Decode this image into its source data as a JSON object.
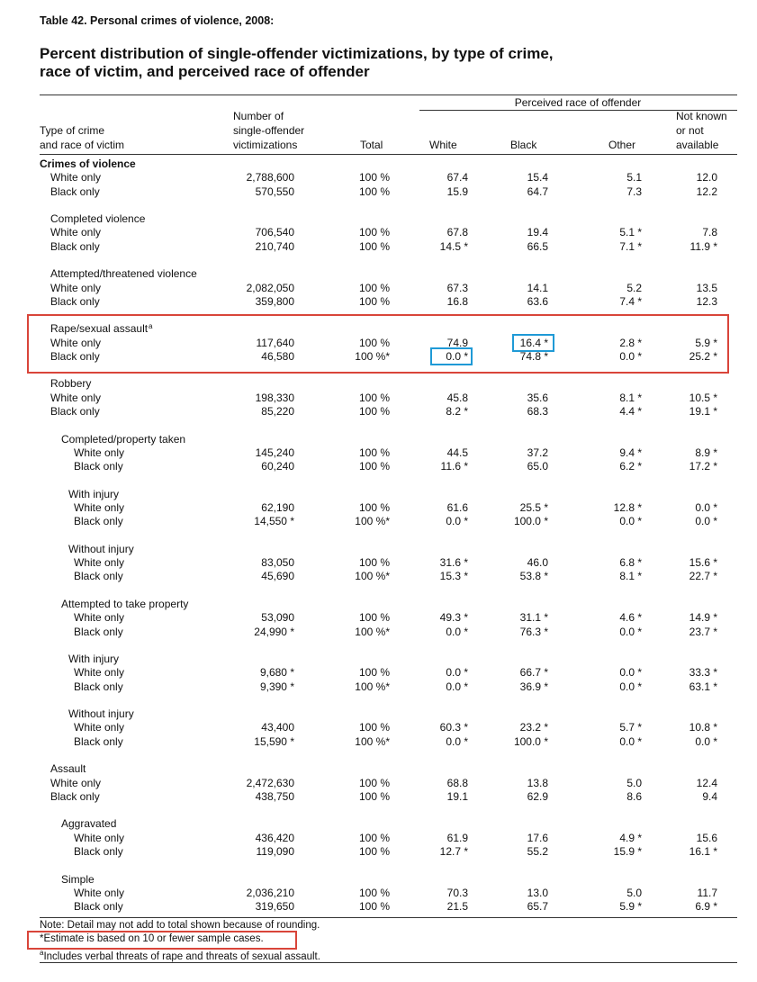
{
  "table_label": "Table 42. Personal crimes of violence, 2008:",
  "title_line1": "Percent distribution of single-offender victimizations, by type of crime,",
  "title_line2": "race of victim, and perceived race of offender",
  "header": {
    "group": "Perceived race of offender",
    "type_l1": "Type of crime",
    "type_l2": "and race of victim",
    "num_l1": "Number of",
    "num_l2": "single-offender",
    "num_l3": "victimizations",
    "total": "Total",
    "white": "White",
    "black": "Black",
    "other": "Other",
    "nk_l1": "Not known",
    "nk_l2": "or not",
    "nk_l3": "available"
  },
  "rows": [
    {
      "label": "Crimes of violence",
      "bold": true,
      "indent": 0
    },
    {
      "label": "White only",
      "indent": 1,
      "n": "2,788,600",
      "total": "100 %",
      "white": "67.4",
      "black": "15.4",
      "other": "5.1",
      "nk": "12.0"
    },
    {
      "label": "Black only",
      "indent": 1,
      "n": "570,550",
      "total": "100 %",
      "white": "15.9",
      "black": "64.7",
      "other": "7.3",
      "nk": "12.2"
    },
    {
      "blank": true
    },
    {
      "label": "Completed violence",
      "indent": 1
    },
    {
      "label": "White only",
      "indent": 1,
      "n": "706,540",
      "total": "100 %",
      "white": "67.8",
      "black": "19.4",
      "other": "5.1 *",
      "nk": "7.8"
    },
    {
      "label": "Black only",
      "indent": 1,
      "n": "210,740",
      "total": "100 %",
      "white": "14.5 *",
      "black": "66.5",
      "other": "7.1 *",
      "nk": "11.9 *"
    },
    {
      "blank": true
    },
    {
      "label": "Attempted/threatened violence",
      "indent": 1
    },
    {
      "label": "White only",
      "indent": 1,
      "n": "2,082,050",
      "total": "100 %",
      "white": "67.3",
      "black": "14.1",
      "other": "5.2",
      "nk": "13.5"
    },
    {
      "label": "Black only",
      "indent": 1,
      "n": "359,800",
      "total": "100 %",
      "white": "16.8",
      "black": "63.6",
      "other": "7.4 *",
      "nk": "12.3"
    },
    {
      "blank": true
    },
    {
      "label": "Rape/sexual assault",
      "sup": "a",
      "indent": 1
    },
    {
      "label": "White only",
      "indent": 1,
      "n": "117,640",
      "total": "100 %",
      "white": "74.9",
      "black": "16.4 *",
      "other": "2.8 *",
      "nk": "5.9 *"
    },
    {
      "label": "Black only",
      "indent": 1,
      "n": "46,580",
      "total": "100 %*",
      "white": "0.0 *",
      "black": "74.8 *",
      "other": "0.0 *",
      "nk": "25.2 *"
    },
    {
      "blank": true
    },
    {
      "label": "Robbery",
      "indent": 1
    },
    {
      "label": "White only",
      "indent": 1,
      "n": "198,330",
      "total": "100 %",
      "white": "45.8",
      "black": "35.6",
      "other": "8.1 *",
      "nk": "10.5 *"
    },
    {
      "label": "Black only",
      "indent": 1,
      "n": "85,220",
      "total": "100 %",
      "white": "8.2 *",
      "black": "68.3",
      "other": "4.4 *",
      "nk": "19.1 *"
    },
    {
      "blank": true
    },
    {
      "label": "Completed/property taken",
      "indent": 2
    },
    {
      "label": "White only",
      "indent": 3,
      "n": "145,240",
      "total": "100 %",
      "white": "44.5",
      "black": "37.2",
      "other": "9.4 *",
      "nk": "8.9 *"
    },
    {
      "label": "Black only",
      "indent": 3,
      "n": "60,240",
      "total": "100 %",
      "white": "11.6 *",
      "black": "65.0",
      "other": "6.2 *",
      "nk": "17.2 *"
    },
    {
      "blank": true
    },
    {
      "label": "With injury",
      "indent": 2.5
    },
    {
      "label": "White only",
      "indent": 3,
      "n": "62,190",
      "total": "100 %",
      "white": "61.6",
      "black": "25.5 *",
      "other": "12.8 *",
      "nk": "0.0 *"
    },
    {
      "label": "Black only",
      "indent": 3,
      "n": "14,550 *",
      "total": "100 %*",
      "white": "0.0 *",
      "black": "100.0 *",
      "other": "0.0 *",
      "nk": "0.0 *"
    },
    {
      "blank": true
    },
    {
      "label": "Without injury",
      "indent": 2.5
    },
    {
      "label": "White only",
      "indent": 3,
      "n": "83,050",
      "total": "100 %",
      "white": "31.6 *",
      "black": "46.0",
      "other": "6.8 *",
      "nk": "15.6 *"
    },
    {
      "label": "Black only",
      "indent": 3,
      "n": "45,690",
      "total": "100 %*",
      "white": "15.3 *",
      "black": "53.8 *",
      "other": "8.1 *",
      "nk": "22.7 *"
    },
    {
      "blank": true
    },
    {
      "label": "Attempted to take property",
      "indent": 2
    },
    {
      "label": "White only",
      "indent": 3,
      "n": "53,090",
      "total": "100 %",
      "white": "49.3 *",
      "black": "31.1 *",
      "other": "4.6 *",
      "nk": "14.9 *"
    },
    {
      "label": "Black only",
      "indent": 3,
      "n": "24,990 *",
      "total": "100 %*",
      "white": "0.0 *",
      "black": "76.3 *",
      "other": "0.0 *",
      "nk": "23.7 *"
    },
    {
      "blank": true
    },
    {
      "label": "With injury",
      "indent": 2.5
    },
    {
      "label": "White only",
      "indent": 3,
      "n": "9,680 *",
      "total": "100 %",
      "white": "0.0 *",
      "black": "66.7 *",
      "other": "0.0 *",
      "nk": "33.3 *"
    },
    {
      "label": "Black only",
      "indent": 3,
      "n": "9,390 *",
      "total": "100 %*",
      "white": "0.0 *",
      "black": "36.9 *",
      "other": "0.0 *",
      "nk": "63.1 *"
    },
    {
      "blank": true
    },
    {
      "label": "Without injury",
      "indent": 2.5
    },
    {
      "label": "White only",
      "indent": 3,
      "n": "43,400",
      "total": "100 %",
      "white": "60.3 *",
      "black": "23.2 *",
      "other": "5.7 *",
      "nk": "10.8 *"
    },
    {
      "label": "Black only",
      "indent": 3,
      "n": "15,590 *",
      "total": "100 %*",
      "white": "0.0 *",
      "black": "100.0 *",
      "other": "0.0 *",
      "nk": "0.0 *"
    },
    {
      "blank": true
    },
    {
      "label": "Assault",
      "indent": 1
    },
    {
      "label": "White only",
      "indent": 1,
      "n": "2,472,630",
      "total": "100 %",
      "white": "68.8",
      "black": "13.8",
      "other": "5.0",
      "nk": "12.4"
    },
    {
      "label": "Black only",
      "indent": 1,
      "n": "438,750",
      "total": "100 %",
      "white": "19.1",
      "black": "62.9",
      "other": "8.6",
      "nk": "9.4"
    },
    {
      "blank": true
    },
    {
      "label": "Aggravated",
      "indent": 2
    },
    {
      "label": "White only",
      "indent": 3,
      "n": "436,420",
      "total": "100 %",
      "white": "61.9",
      "black": "17.6",
      "other": "4.9 *",
      "nk": "15.6"
    },
    {
      "label": "Black only",
      "indent": 3,
      "n": "119,090",
      "total": "100 %",
      "white": "12.7 *",
      "black": "55.2",
      "other": "15.9 *",
      "nk": "16.1 *"
    },
    {
      "blank": true
    },
    {
      "label": "Simple",
      "indent": 2
    },
    {
      "label": "White only",
      "indent": 3,
      "n": "2,036,210",
      "total": "100 %",
      "white": "70.3",
      "black": "13.0",
      "other": "5.0",
      "nk": "11.7"
    },
    {
      "label": "Black only",
      "indent": 3,
      "n": "319,650",
      "total": "100 %",
      "white": "21.5",
      "black": "65.7",
      "other": "5.9 *",
      "nk": "6.9 *"
    }
  ],
  "notes": {
    "note1": "Note: Detail may not add to total shown because of rounding.",
    "note2": "*Estimate is based on 10 or fewer sample cases.",
    "note3_sup": "a",
    "note3": "Includes verbal threats of rape and threats of sexual assault."
  },
  "highlight_colors": {
    "red": "#d9453a",
    "blue": "#1f9ad6"
  }
}
